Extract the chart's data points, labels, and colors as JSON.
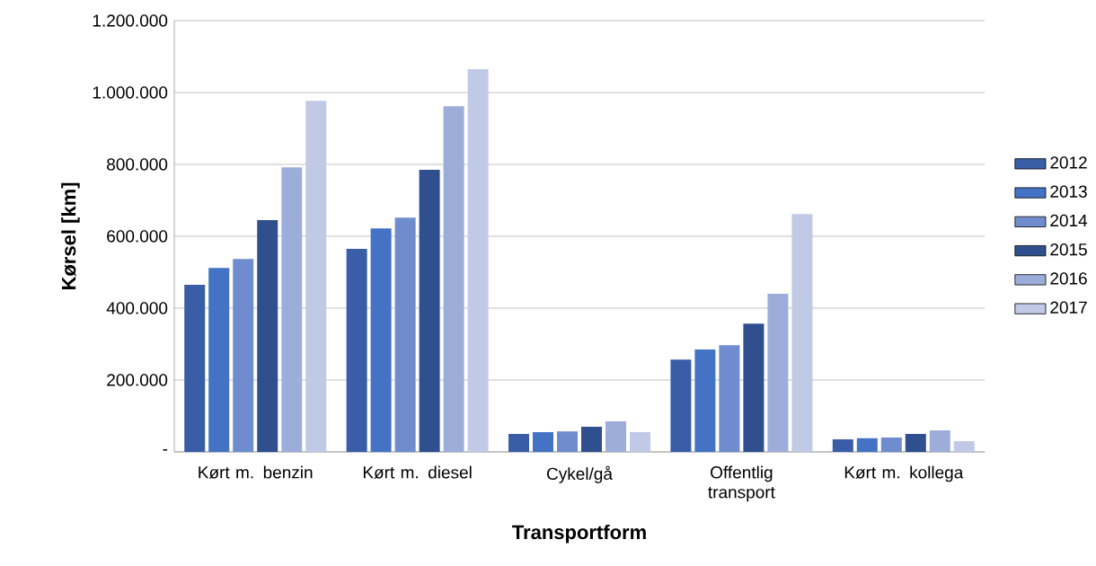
{
  "chart_data": {
    "type": "bar",
    "xlabel": "Transportform",
    "ylabel": "Kørsel [km]",
    "categories": [
      "Kørt m. benzin",
      "Kørt m. diesel",
      "Cykel/gå",
      "Offentlig transport",
      "Kørt m. kollega"
    ],
    "series": [
      {
        "name": "2012",
        "color": "#3a5da8",
        "values": [
          465000,
          565000,
          50000,
          257000,
          35000
        ]
      },
      {
        "name": "2013",
        "color": "#4472c4",
        "values": [
          512000,
          622000,
          55000,
          285000,
          38000
        ]
      },
      {
        "name": "2014",
        "color": "#6f8ccf",
        "values": [
          537000,
          652000,
          57000,
          297000,
          40000
        ]
      },
      {
        "name": "2015",
        "color": "#2f4f8f",
        "values": [
          645000,
          785000,
          70000,
          357000,
          50000
        ]
      },
      {
        "name": "2016",
        "color": "#9dadd9",
        "values": [
          792000,
          962000,
          85000,
          440000,
          60000
        ]
      },
      {
        "name": "2017",
        "color": "#c0c9e5",
        "values": [
          977000,
          1065000,
          55000,
          662000,
          30000
        ]
      }
    ],
    "ylim": [
      0,
      1200000
    ],
    "yticks": [
      {
        "value": 0,
        "label": "-"
      },
      {
        "value": 200000,
        "label": "200.000"
      },
      {
        "value": 400000,
        "label": "400.000"
      },
      {
        "value": 600000,
        "label": "600.000"
      },
      {
        "value": 800000,
        "label": "800.000"
      },
      {
        "value": 1000000,
        "label": "1.000.000"
      },
      {
        "value": 1200000,
        "label": "1.200.000"
      }
    ],
    "grid": "y",
    "legend": "right"
  }
}
